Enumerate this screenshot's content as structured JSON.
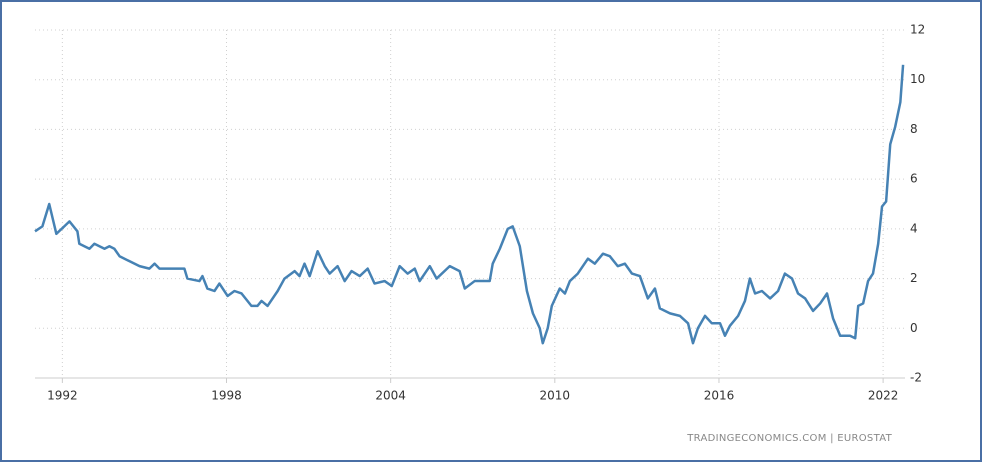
{
  "chart_data": {
    "type": "line",
    "source": "TRADINGECONOMICS.COM  |  EUROSTAT",
    "color": "#4682b4",
    "grid": true,
    "xlim": [
      1991,
      2022.8
    ],
    "xticks": [
      1992,
      1998,
      2004,
      2010,
      2016,
      2022
    ],
    "ylim": [
      -2,
      12
    ],
    "yticks": [
      -2,
      0,
      2,
      4,
      6,
      8,
      10,
      12
    ],
    "x": [
      1991.0,
      1991.27,
      1991.52,
      1991.78,
      1992.07,
      1992.26,
      1992.55,
      1992.62,
      1992.99,
      1993.17,
      1993.54,
      1993.72,
      1993.9,
      1994.09,
      1994.45,
      1994.82,
      1995.18,
      1995.37,
      1995.55,
      1996.46,
      1996.57,
      1997.01,
      1997.12,
      1997.3,
      1997.56,
      1997.74,
      1998.04,
      1998.29,
      1998.55,
      1998.91,
      1999.13,
      1999.28,
      1999.5,
      1999.87,
      2000.12,
      2000.49,
      2000.67,
      2000.85,
      2001.04,
      2001.33,
      2001.59,
      2001.77,
      2002.06,
      2002.32,
      2002.57,
      2002.87,
      2003.16,
      2003.41,
      2003.78,
      2004.04,
      2004.33,
      2004.62,
      2004.88,
      2005.06,
      2005.43,
      2005.68,
      2006.16,
      2006.52,
      2006.71,
      2007.07,
      2007.62,
      2007.73,
      2007.99,
      2008.28,
      2008.46,
      2008.72,
      2008.98,
      2009.2,
      2009.45,
      2009.56,
      2009.74,
      2009.89,
      2010.18,
      2010.37,
      2010.55,
      2010.84,
      2011.21,
      2011.46,
      2011.76,
      2012.01,
      2012.3,
      2012.56,
      2012.82,
      2013.11,
      2013.4,
      2013.66,
      2013.84,
      2014.21,
      2014.57,
      2014.87,
      2015.05,
      2015.23,
      2015.49,
      2015.74,
      2016.04,
      2016.22,
      2016.4,
      2016.7,
      2016.95,
      2017.13,
      2017.32,
      2017.57,
      2017.87,
      2018.16,
      2018.41,
      2018.67,
      2018.89,
      2019.15,
      2019.44,
      2019.7,
      2019.95,
      2020.17,
      2020.43,
      2020.79,
      2020.98,
      2021.09,
      2021.27,
      2021.45,
      2021.63,
      2021.82,
      2021.96,
      2022.11,
      2022.26,
      2022.44,
      2022.63,
      2022.73
    ],
    "values": [
      3.9,
      4.1,
      5.0,
      3.8,
      4.1,
      4.3,
      3.9,
      3.4,
      3.2,
      3.4,
      3.2,
      3.3,
      3.2,
      2.9,
      2.7,
      2.5,
      2.4,
      2.6,
      2.4,
      2.4,
      2.0,
      1.9,
      2.1,
      1.6,
      1.5,
      1.8,
      1.3,
      1.5,
      1.4,
      0.9,
      0.9,
      1.1,
      0.9,
      1.5,
      2.0,
      2.3,
      2.1,
      2.6,
      2.1,
      3.1,
      2.5,
      2.2,
      2.5,
      1.9,
      2.3,
      2.1,
      2.4,
      1.8,
      1.9,
      1.7,
      2.5,
      2.2,
      2.4,
      1.9,
      2.5,
      2.0,
      2.5,
      2.3,
      1.6,
      1.9,
      1.9,
      2.6,
      3.2,
      4.0,
      4.1,
      3.3,
      1.5,
      0.6,
      0.0,
      -0.6,
      0.0,
      0.9,
      1.6,
      1.4,
      1.9,
      2.2,
      2.8,
      2.6,
      3.0,
      2.9,
      2.5,
      2.6,
      2.2,
      2.1,
      1.2,
      1.6,
      0.8,
      0.6,
      0.5,
      0.2,
      -0.6,
      0.0,
      0.5,
      0.2,
      0.2,
      -0.3,
      0.1,
      0.5,
      1.1,
      2.0,
      1.4,
      1.5,
      1.2,
      1.5,
      2.2,
      2.0,
      1.4,
      1.2,
      0.7,
      1.0,
      1.4,
      0.4,
      -0.3,
      -0.3,
      -0.4,
      0.9,
      1.0,
      1.9,
      2.2,
      3.4,
      4.9,
      5.1,
      7.4,
      8.1,
      9.1,
      10.6
    ]
  }
}
